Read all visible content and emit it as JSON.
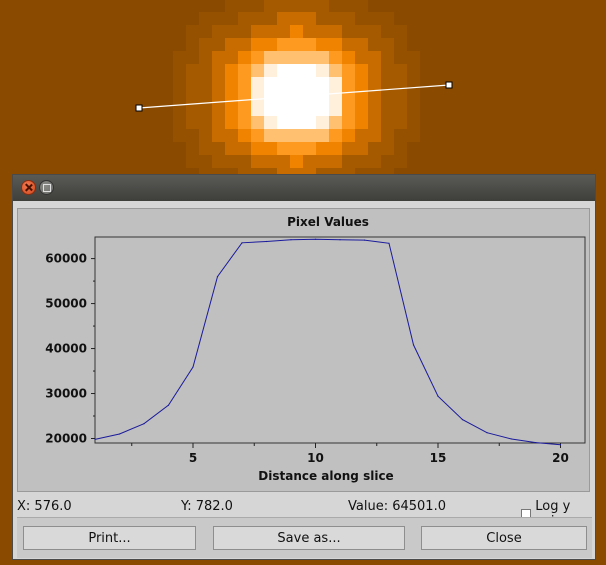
{
  "dialog": {
    "status": {
      "x_readout": "X: 576.0",
      "y_readout": "Y: 782.0",
      "value_readout": "Value: 64501.0",
      "log_y_label": "Log y axis",
      "log_y_checked": false
    },
    "buttons": {
      "print": "Print...",
      "save_as": "Save as...",
      "close": "Close"
    }
  },
  "colors": {
    "line": "#1a1a9c",
    "plot_bg": "#c0c0c0",
    "image_hot": "#ff8800",
    "image_core": "#ffffff"
  },
  "chart_data": {
    "type": "line",
    "title": "Pixel Values",
    "xlabel": "Distance along slice",
    "ylabel": "",
    "xlim": [
      1,
      21
    ],
    "ylim": [
      19000,
      64800
    ],
    "x_ticks": [
      5,
      10,
      15,
      20
    ],
    "y_ticks": [
      20000,
      30000,
      40000,
      50000,
      60000
    ],
    "grid": false,
    "series": [
      {
        "x": [
          1,
          2,
          3,
          4,
          5,
          6,
          7,
          8,
          9,
          10,
          11,
          12,
          13,
          14,
          15,
          16,
          17,
          18,
          19,
          20
        ],
        "values": [
          19800,
          21000,
          23300,
          27400,
          35900,
          56000,
          63500,
          63800,
          64200,
          64300,
          64200,
          64100,
          63400,
          40800,
          29400,
          24200,
          21300,
          19900,
          19100,
          18600
        ]
      }
    ]
  }
}
